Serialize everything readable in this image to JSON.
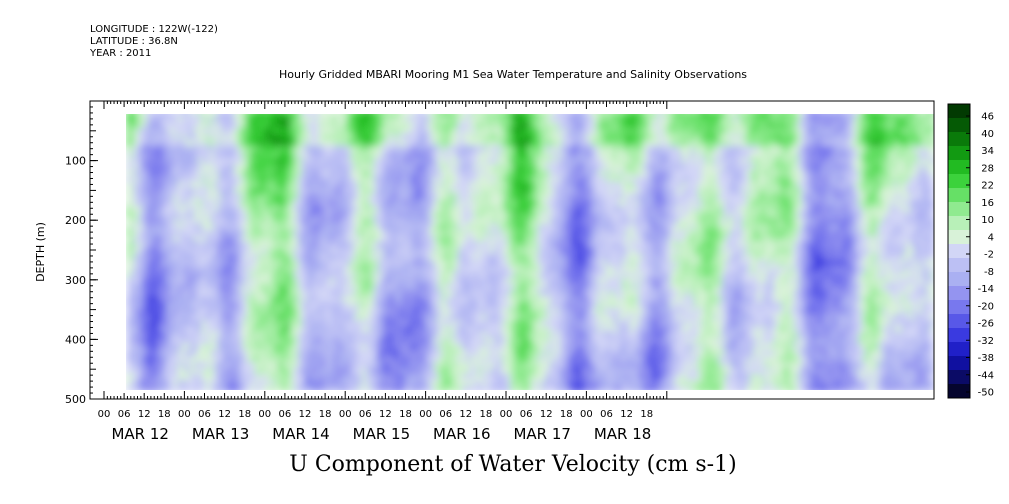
{
  "meta": {
    "longitude": "LONGITUDE : 122W(-122)",
    "latitude": "LATITUDE : 36.8N",
    "year": "YEAR : 2011"
  },
  "chart_data": {
    "type": "heatmap",
    "title": "Hourly Gridded MBARI Mooring M1 Sea Water Temperature and Salinity Observations",
    "variable_title": "U Component of Water Velocity (cm s-1)",
    "ylabel": "DEPTH (m)",
    "ylim": [
      500,
      0
    ],
    "y_ticks": [
      100,
      200,
      300,
      400,
      500
    ],
    "data_depth_range": [
      15,
      480
    ],
    "x_hour_ticks": [
      "00",
      "06",
      "12",
      "18",
      "00",
      "06",
      "12",
      "18",
      "00",
      "06",
      "12",
      "18",
      "00",
      "06",
      "12",
      "18",
      "00",
      "06",
      "12",
      "18",
      "00",
      "06",
      "12",
      "18",
      "00",
      "06",
      "12",
      "18"
    ],
    "x_day_labels": [
      "MAR 12",
      "MAR 13",
      "MAR 14",
      "MAR 15",
      "MAR 16",
      "MAR 17",
      "MAR 18"
    ],
    "colorbar": {
      "levels": [
        "46",
        "40",
        "34",
        "28",
        "22",
        "16",
        "10",
        "4",
        "-2",
        "-8",
        "-14",
        "-20",
        "-26",
        "-32",
        "-38",
        "-44",
        "-50"
      ],
      "min": -50,
      "max": 52,
      "colors": [
        "#05052e",
        "#0b0b66",
        "#1010a0",
        "#2020c8",
        "#3a3ae0",
        "#5858e8",
        "#7878ee",
        "#9494f0",
        "#aab0f2",
        "#bcc0f4",
        "#d2d6f6",
        "#d8f2d8",
        "#b8f0b8",
        "#90ea90",
        "#66e066",
        "#3cd23c",
        "#22bb22",
        "#129a12",
        "#0a7a0a",
        "#055a05",
        "#023a02"
      ]
    },
    "field_summary": "alternating bands of green (eastward, approx +4 to +22) and blue (westward, approx -2 to -20) velocity at near-daily intervals across all depths; strongest green near surface"
  }
}
